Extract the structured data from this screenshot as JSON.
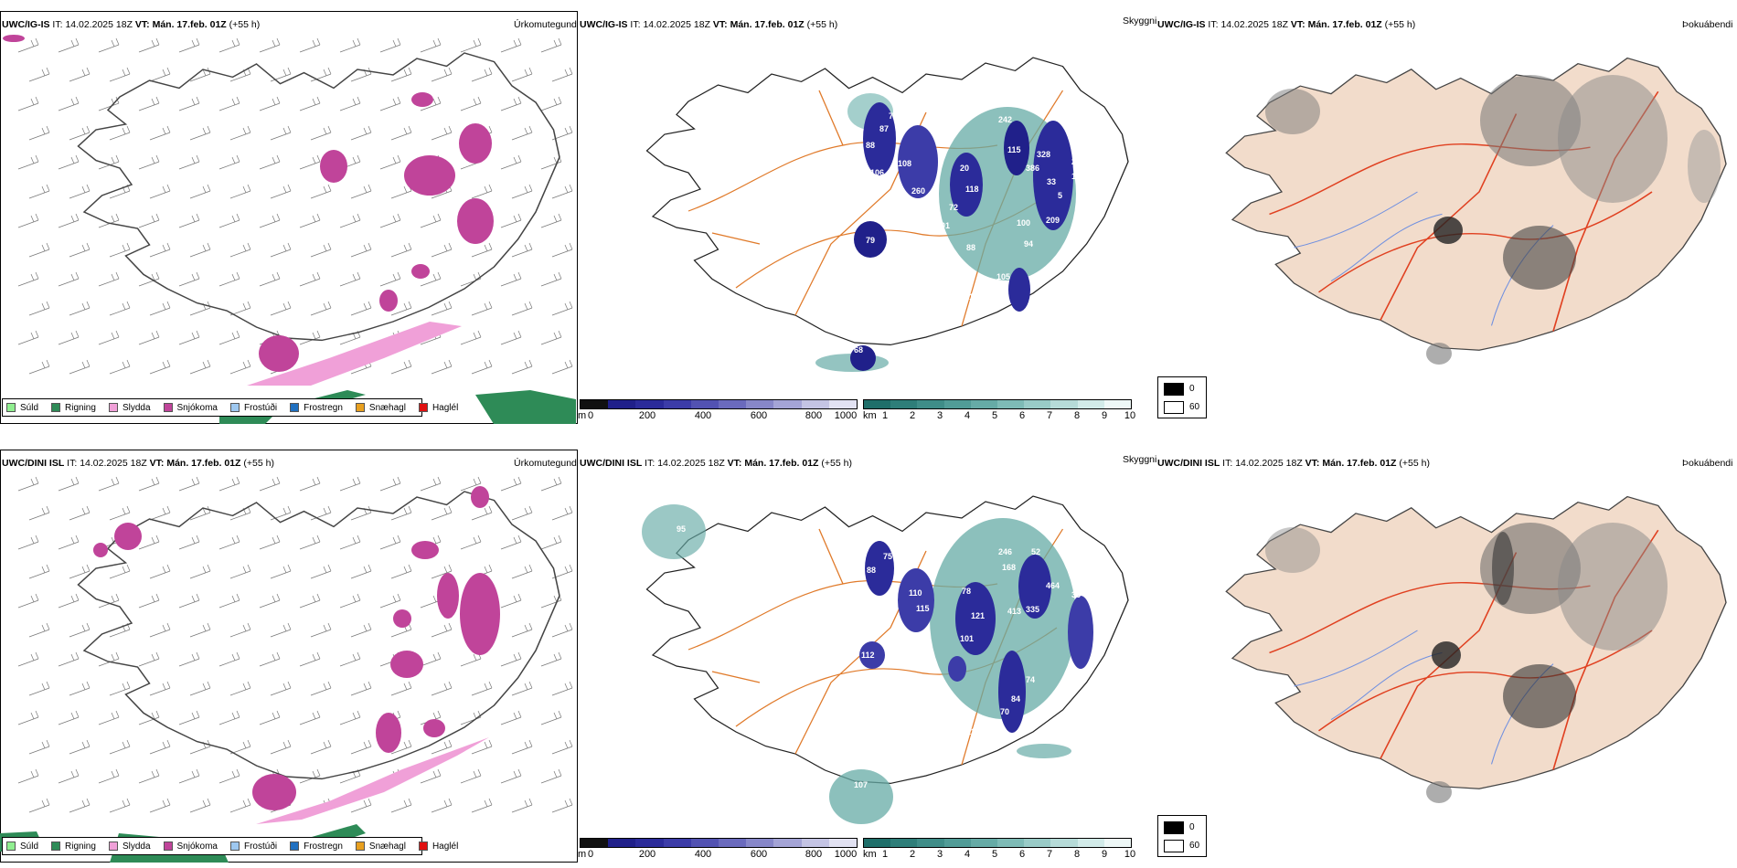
{
  "colors": {
    "precip": {
      "drizzle": "#90ee90",
      "rain": "#2e8b57",
      "sleet": "#f0a0d8",
      "snow": "#c0449a",
      "frost_drizzle": "#9ec8f0",
      "freezing_rain": "#2070c0",
      "snow_grains": "#e8a020",
      "hail": "#e01010"
    },
    "ceiling": [
      "#111111",
      "#20208a",
      "#2b2b9a",
      "#3c3ca8",
      "#5252b2",
      "#6a6abd",
      "#8787c9",
      "#a4a4d6",
      "#c4c4e4"
    ],
    "vis": [
      "#1f6f6a",
      "#2e7e79",
      "#3f8d88",
      "#519c97",
      "#66aba6",
      "#7ebbb6",
      "#99cbc7",
      "#b6dbd8",
      "#d2ebe9",
      "#eef8f7"
    ],
    "land": "#f2dccb",
    "road": "#e07a2a",
    "road_red": "#e04020",
    "river": "#6f8fe0",
    "snowpatch": "#c0449a"
  },
  "rows": [
    {
      "model": "UWC/IG-IS",
      "it_label": "IT:",
      "it_value": "14.02.2025 18Z",
      "vt_label": "VT:",
      "vt_value": "Mán. 17.feb. 01Z",
      "lead": "(+55 h)",
      "title_precip": "Úrkomutegund",
      "title_ceiling": "Skyggni",
      "title_cloud": "Þokuábendi",
      "ceiling_labels": [
        "88",
        "87",
        "108",
        "106",
        "16",
        "260",
        "77",
        "20",
        "118",
        "72",
        "101",
        "21",
        "88",
        "79",
        "242",
        "115",
        "328",
        "386",
        "33",
        "28",
        "17",
        "5",
        "209",
        "100",
        "94",
        "105",
        "106",
        "108",
        "68"
      ]
    },
    {
      "model": "UWC/DINI ISL",
      "it_label": "IT:",
      "it_value": "14.02.2025 18Z",
      "vt_label": "VT:",
      "vt_value": "Mán. 17.feb. 01Z",
      "lead": "(+55 h)",
      "title_precip": "Úrkomutegund",
      "title_ceiling": "Skyggni",
      "title_cloud": "Þokuábendi",
      "ceiling_labels": [
        "88",
        "75",
        "110",
        "115",
        "78",
        "121",
        "101",
        "246",
        "168",
        "52",
        "464",
        "413",
        "335",
        "38",
        "35",
        "74",
        "84",
        "70",
        "12",
        "10",
        "112",
        "17",
        "107",
        "95"
      ]
    }
  ],
  "precip_legend": [
    "Súld",
    "Rigning",
    "Slydda",
    "Snjókoma",
    "Frostúði",
    "Frostregn",
    "Snæhagl",
    "Haglél"
  ],
  "ceiling_bar": {
    "unit": "m",
    "ticks": [
      "0",
      "200",
      "400",
      "600",
      "800",
      "1000"
    ]
  },
  "vis_bar": {
    "unit": "km",
    "ticks": [
      "1",
      "2",
      "3",
      "4",
      "5",
      "6",
      "7",
      "8",
      "9",
      "10"
    ]
  },
  "cloud_legend": {
    "dark": "0",
    "light": "60"
  }
}
